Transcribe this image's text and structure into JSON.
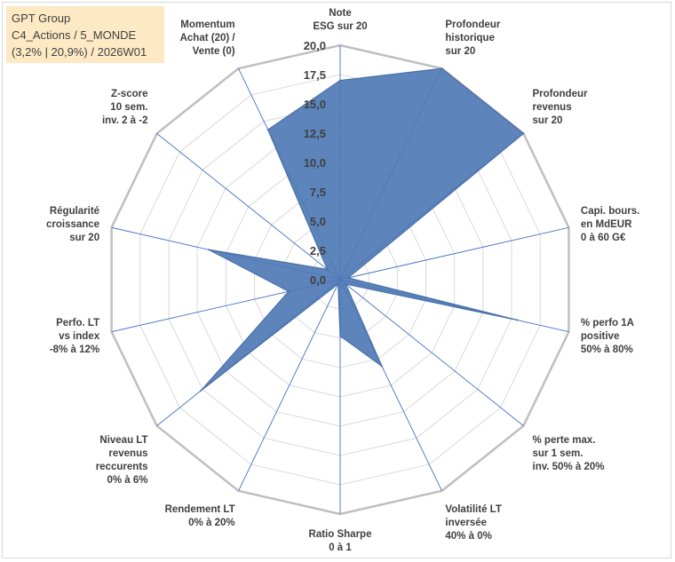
{
  "chart_data": {
    "type": "radar",
    "title_lines": [
      "GPT Group",
      "C4_Actions / 5_MONDE",
      "(3,2% | 20,9%) / 2026W01"
    ],
    "rlim": [
      0,
      20
    ],
    "tick_values": [
      0,
      2.5,
      5,
      7.5,
      10,
      12.5,
      15,
      17.5,
      20
    ],
    "tick_labels": [
      "0,0",
      "2,5",
      "5,0",
      "7,5",
      "10,0",
      "12,5",
      "15,0",
      "17,5",
      "20,0"
    ],
    "colors": {
      "fill": "#4f7ab5",
      "stroke": "#4a70a8",
      "spoke": "#4472c4",
      "ring": "#d9d9d9",
      "outer_ring": "#bfbfbf"
    },
    "axes": [
      {
        "lines": [
          "Note",
          "ESG sur 20"
        ],
        "value": 17
      },
      {
        "lines": [
          "Profondeur",
          "historique",
          "sur 20"
        ],
        "value": 20
      },
      {
        "lines": [
          "Profondeur",
          "revenus",
          "sur 20"
        ],
        "value": 20
      },
      {
        "lines": [
          "Capi. bours.",
          "en MdEUR",
          "0 à 60 G€"
        ],
        "value": 0.7
      },
      {
        "lines": [
          "% perfo 1A",
          "positive",
          "50% à 80%"
        ],
        "value": 15.5
      },
      {
        "lines": [
          "% perte max.",
          "sur 1 sem.",
          "inv. 50% à 20%"
        ],
        "value": 0.6
      },
      {
        "lines": [
          "Volatilité LT",
          "inversée",
          "40% à 0%"
        ],
        "value": 8.2
      },
      {
        "lines": [
          "Ratio Sharpe",
          "0 à 1"
        ],
        "value": 4.8
      },
      {
        "lines": [
          "Rendement LT",
          "0% à 20%"
        ],
        "value": 0.4
      },
      {
        "lines": [
          "Niveau LT",
          "revenus",
          "reccurents",
          "0% à 6%"
        ],
        "value": 15.2
      },
      {
        "lines": [
          "Perfo. LT",
          "vs index",
          "-8% à 12%"
        ],
        "value": 4.5
      },
      {
        "lines": [
          "Régularité",
          "croissance",
          "sur 20"
        ],
        "value": 11.5
      },
      {
        "lines": [
          "Z-score",
          "10 sem.",
          "inv. 2 à -2"
        ],
        "value": 1.4
      },
      {
        "lines": [
          "Momentum",
          "Achat (20) /",
          "Vente (0)"
        ],
        "value": 14.2
      }
    ]
  }
}
